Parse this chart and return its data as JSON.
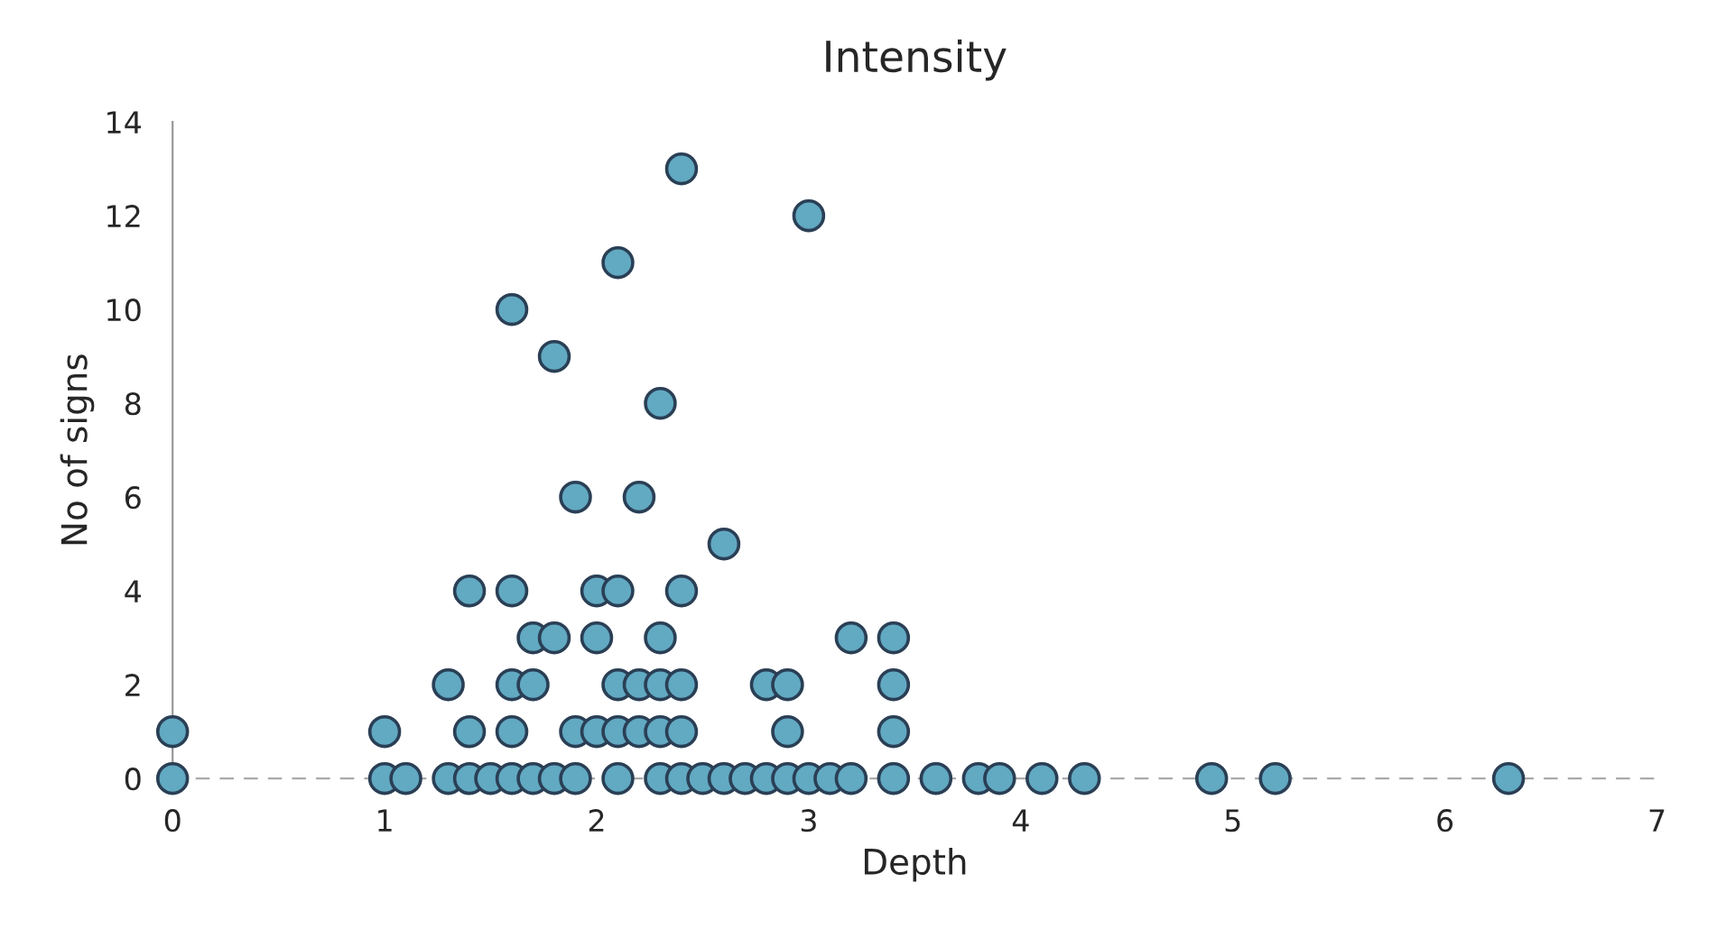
{
  "chart_data": {
    "type": "scatter",
    "title": "Intensity",
    "xlabel": "Depth",
    "ylabel": "No of signs",
    "x": [
      0,
      1.0,
      1.1,
      1.3,
      1.4,
      1.5,
      1.6,
      1.7,
      1.8,
      1.9,
      2.1,
      2.3,
      2.4,
      2.5,
      2.6,
      2.7,
      2.8,
      2.9,
      3.0,
      3.1,
      3.2,
      3.4,
      3.6,
      3.8,
      3.9,
      4.1,
      4.3,
      4.9,
      5.2,
      6.3,
      0,
      1.0,
      1.4,
      1.6,
      1.9,
      2.0,
      2.1,
      2.2,
      2.3,
      2.4,
      2.9,
      3.4,
      1.3,
      1.6,
      1.7,
      2.1,
      2.2,
      2.3,
      2.4,
      2.8,
      2.9,
      3.4,
      1.7,
      1.8,
      2.0,
      2.3,
      3.2,
      3.4,
      1.4,
      1.6,
      2.0,
      2.1,
      2.4,
      2.6,
      1.9,
      2.2,
      2.3,
      1.8,
      1.6,
      2.1,
      3.0,
      2.4
    ],
    "values": [
      0,
      0,
      0,
      0,
      0,
      0,
      0,
      0,
      0,
      0,
      0,
      0,
      0,
      0,
      0,
      0,
      0,
      0,
      0,
      0,
      0,
      0,
      0,
      0,
      0,
      0,
      0,
      0,
      0,
      0,
      1,
      1,
      1,
      1,
      1,
      1,
      1,
      1,
      1,
      1,
      1,
      1,
      2,
      2,
      2,
      2,
      2,
      2,
      2,
      2,
      2,
      2,
      3,
      3,
      3,
      3,
      3,
      3,
      4,
      4,
      4,
      4,
      4,
      5,
      6,
      6,
      8,
      9,
      10,
      11,
      12,
      13
    ],
    "color": "#62a9c2",
    "marker": "circle",
    "xlim": [
      0,
      7
    ],
    "xticks": [
      0,
      1,
      2,
      3,
      4,
      5,
      6,
      7
    ],
    "ylim": [
      0,
      14
    ],
    "yticks": [
      0,
      2,
      4,
      6,
      8,
      10,
      12,
      14
    ],
    "grid": false
  }
}
